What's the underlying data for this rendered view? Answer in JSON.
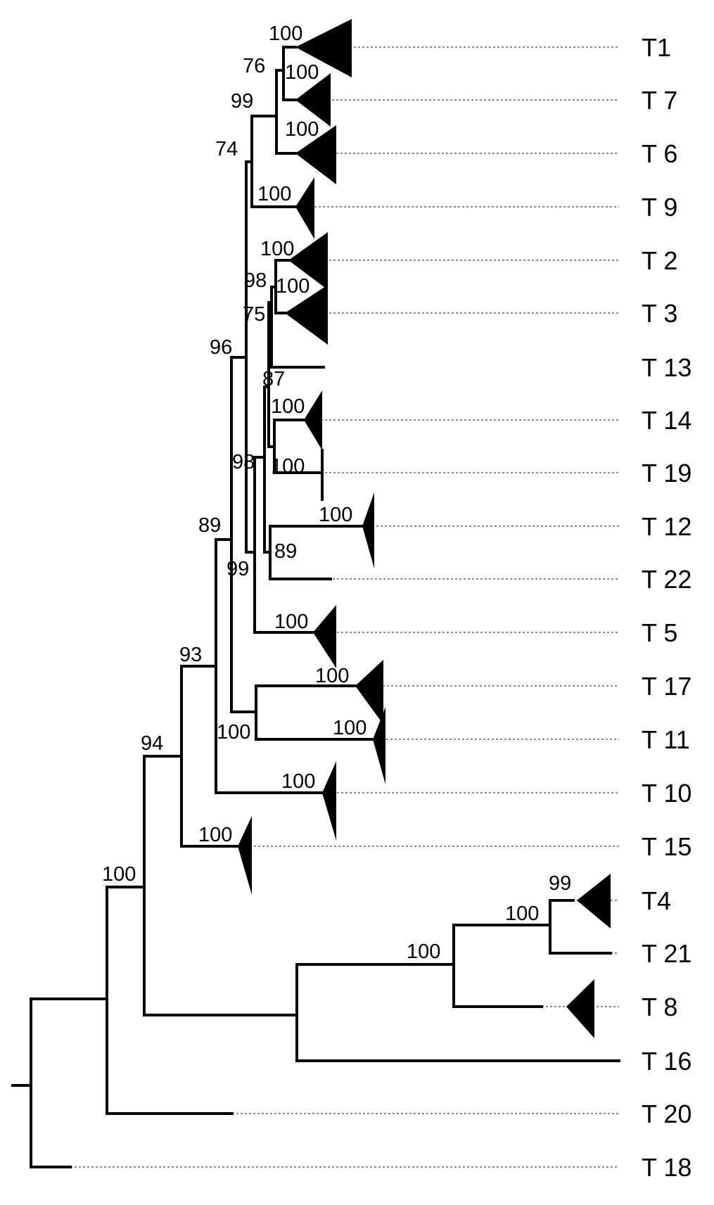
{
  "taxa": [
    "T1",
    "T 7",
    "T 6",
    "T 9",
    "T 2",
    "T 3",
    "T 13",
    "T 14",
    "T 19",
    "T 12",
    "T 22",
    "T 5",
    "T 17",
    "T 11",
    "T 10",
    "T 15",
    "T4",
    "T 21",
    "T 8",
    "T 16",
    "T 20",
    "T 18"
  ],
  "supports": [
    "100",
    "76",
    "100",
    "99",
    "100",
    "74",
    "100",
    "100",
    "98",
    "100",
    "75",
    "96",
    "87",
    "100",
    "98",
    "100",
    "100",
    "89",
    "89",
    "99",
    "100",
    "100",
    "93",
    "100",
    "100",
    "94",
    "100",
    "99",
    "100",
    "100",
    "100",
    "100"
  ]
}
